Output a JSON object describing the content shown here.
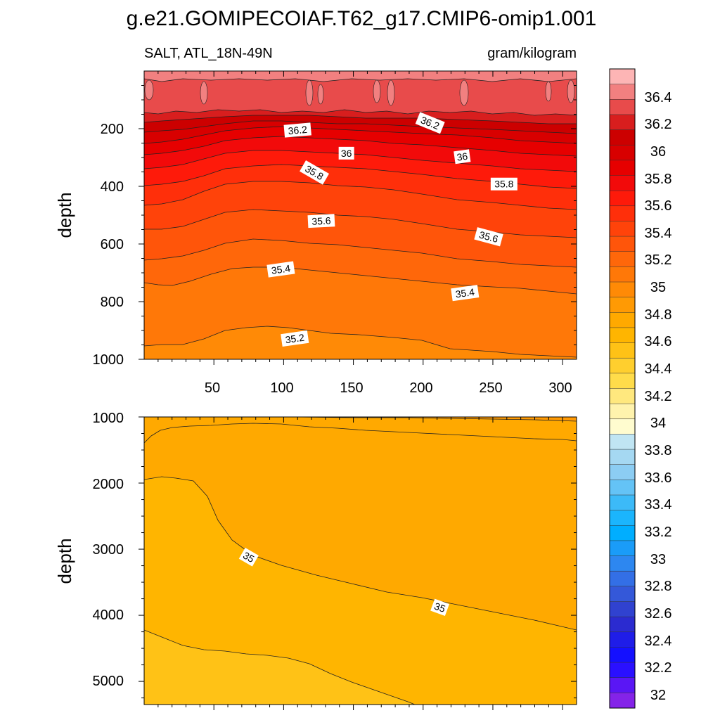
{
  "chart_data": [
    {
      "type": "heatmap",
      "panel": "upper",
      "title": "g.e21.GOMIPECOIAF.T62_g17.CMIP6-omip1.001",
      "left_subtitle": "SALT, ATL_18N-49N",
      "right_subtitle": "gram/kilogram",
      "xlabel": "",
      "ylabel": "depth",
      "xlim": [
        0,
        310
      ],
      "ylim": [
        1000,
        0
      ],
      "xticks": [
        "50",
        "100",
        "150",
        "200",
        "250",
        "300"
      ],
      "yticks": [
        "200",
        "400",
        "600",
        "800",
        "1000"
      ],
      "contour_labels": [
        {
          "text": "36.2",
          "x": 110,
          "depth": 205,
          "angle": -5
        },
        {
          "text": "36.2",
          "x": 205,
          "depth": 180,
          "angle": 22
        },
        {
          "text": "36",
          "x": 145,
          "depth": 285,
          "angle": 0
        },
        {
          "text": "36",
          "x": 228,
          "depth": 297,
          "angle": -8
        },
        {
          "text": "35.8",
          "x": 122,
          "depth": 352,
          "angle": 30
        },
        {
          "text": "35.8",
          "x": 258,
          "depth": 392,
          "angle": 0
        },
        {
          "text": "35.6",
          "x": 127,
          "depth": 520,
          "angle": -3
        },
        {
          "text": "35.6",
          "x": 247,
          "depth": 575,
          "angle": 15
        },
        {
          "text": "35.4",
          "x": 98,
          "depth": 688,
          "angle": -8
        },
        {
          "text": "35.4",
          "x": 230,
          "depth": 770,
          "angle": -8
        },
        {
          "text": "35.2",
          "x": 108,
          "depth": 928,
          "angle": -8
        }
      ]
    },
    {
      "type": "heatmap",
      "panel": "lower",
      "ylabel": "depth",
      "xlim": [
        0,
        310
      ],
      "ylim": [
        5350,
        1000
      ],
      "yticks": [
        "1000",
        "2000",
        "3000",
        "4000",
        "5000"
      ],
      "contour_labels": [
        {
          "text": "35",
          "x": 75,
          "depth": 3120,
          "angle": 30
        },
        {
          "text": "35",
          "x": 212,
          "depth": 3880,
          "angle": 20
        }
      ]
    }
  ],
  "colorbar": {
    "labels": [
      "36.4",
      "36.2",
      "36",
      "35.8",
      "35.6",
      "35.4",
      "35.2",
      "35",
      "34.8",
      "34.6",
      "34.4",
      "34.2",
      "34",
      "33.8",
      "33.6",
      "33.4",
      "33.2",
      "33",
      "32.8",
      "32.6",
      "32.4",
      "32.2",
      "32"
    ],
    "colors": [
      "#fdb5b5",
      "#f28080",
      "#e84b4b",
      "#d81e1e",
      "#cc0000",
      "#d80000",
      "#e60000",
      "#f20a0a",
      "#fe1a0a",
      "#ff2f0a",
      "#ff430a",
      "#ff550a",
      "#ff670a",
      "#ff7808",
      "#ff8a06",
      "#ff9a04",
      "#ffa900",
      "#ffb500",
      "#ffc216",
      "#ffcf2e",
      "#ffdc4a",
      "#ffe87e",
      "#fff3ad",
      "#fffccf",
      "#c0e5f3",
      "#a5d8f2",
      "#8ccdf3",
      "#64c3f6",
      "#3cbaf8",
      "#1bb5fd",
      "#00aeff",
      "#1a9cf8",
      "#2d87f0",
      "#336fe6",
      "#3458d9",
      "#3042d0",
      "#2b2bd0",
      "#1f1de8",
      "#1410ff",
      "#2a10ff",
      "#5a16f5",
      "#8423e8"
    ]
  }
}
